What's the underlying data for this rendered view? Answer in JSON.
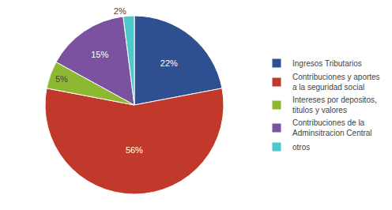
{
  "chart_data": {
    "type": "pie",
    "categories": [
      "Ingresos Tributarios",
      "Contribuciones y aportes\na la seguridad social",
      "Intereses por depositos,\ntitulos y valores",
      "Contribuciones de la\nAdminsitracion Central",
      "otros"
    ],
    "values": [
      22,
      56,
      5,
      15,
      2
    ],
    "value_labels": [
      "22%",
      "56%",
      "5%",
      "15%",
      "2%"
    ],
    "data_labels": true,
    "colors": [
      "#2E5090",
      "#C0392B",
      "#8DB832",
      "#7B52A0",
      "#4EC8CA"
    ],
    "legend": "right"
  }
}
